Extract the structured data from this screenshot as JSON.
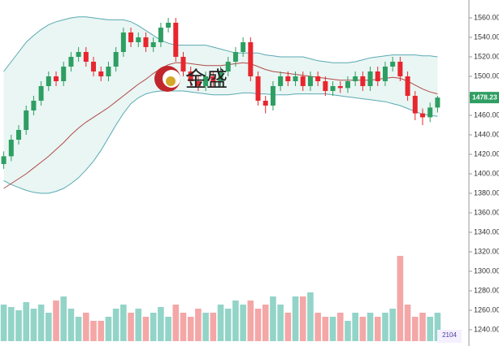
{
  "chart_data": {
    "type": "candlestick",
    "watermark": "金盛",
    "badge": "2104",
    "ylim": [
      1230,
      1570
    ],
    "yticks": [
      {
        "value": 1560,
        "label": "1560.00"
      },
      {
        "value": 1540,
        "label": "1540.00"
      },
      {
        "value": 1520,
        "label": "1520.00"
      },
      {
        "value": 1500,
        "label": "1500.00"
      },
      {
        "value": 1480,
        "label": "1480.00"
      },
      {
        "value": 1460,
        "label": "1460.00"
      },
      {
        "value": 1440,
        "label": "1440.00"
      },
      {
        "value": 1420,
        "label": "1420.00"
      },
      {
        "value": 1400,
        "label": "1400.00"
      },
      {
        "value": 1380,
        "label": "1380.00"
      },
      {
        "value": 1360,
        "label": "1360.00"
      },
      {
        "value": 1340,
        "label": "1340.00"
      },
      {
        "value": 1320,
        "label": "1320.00"
      },
      {
        "value": 1300,
        "label": "1300.00"
      },
      {
        "value": 1280,
        "label": "1280.00"
      },
      {
        "value": 1260,
        "label": "1260.00"
      },
      {
        "value": 1240,
        "label": "1240.00"
      }
    ],
    "up_color": "#2e9e62",
    "down_color": "#e8262e",
    "volume_up_color": "#93d4c8",
    "volume_down_color": "#f4a7a7",
    "band_color": "#5aa9b3",
    "band_fill": "#e9f6f3",
    "middle_color": "#b24a4a",
    "open": [
      1410,
      1418,
      1435,
      1445,
      1465,
      1475,
      1490,
      1500,
      1495,
      1510,
      1520,
      1525,
      1515,
      1505,
      1500,
      1510,
      1525,
      1545,
      1535,
      1540,
      1530,
      1535,
      1550,
      1555,
      1520,
      1505,
      1495,
      1490,
      1500,
      1495,
      1505,
      1515,
      1525,
      1535,
      1500,
      1475,
      1470,
      1490,
      1500,
      1495,
      1500,
      1490,
      1500,
      1495,
      1485,
      1490,
      1488,
      1495,
      1500,
      1490,
      1505,
      1495,
      1510,
      1515,
      1500,
      1480,
      1462,
      1458,
      1468
    ],
    "high": [
      1423,
      1440,
      1450,
      1470,
      1480,
      1495,
      1505,
      1505,
      1515,
      1525,
      1530,
      1530,
      1520,
      1510,
      1515,
      1530,
      1550,
      1550,
      1545,
      1545,
      1540,
      1555,
      1560,
      1560,
      1525,
      1510,
      1500,
      1505,
      1505,
      1510,
      1520,
      1530,
      1540,
      1540,
      1505,
      1480,
      1495,
      1505,
      1505,
      1505,
      1505,
      1505,
      1505,
      1500,
      1495,
      1495,
      1500,
      1505,
      1505,
      1510,
      1510,
      1515,
      1520,
      1520,
      1505,
      1485,
      1467,
      1473,
      1480
    ],
    "low": [
      1405,
      1413,
      1430,
      1440,
      1460,
      1470,
      1485,
      1490,
      1490,
      1505,
      1515,
      1510,
      1500,
      1495,
      1495,
      1505,
      1520,
      1530,
      1530,
      1525,
      1525,
      1530,
      1545,
      1515,
      1500,
      1490,
      1485,
      1485,
      1490,
      1490,
      1500,
      1510,
      1520,
      1495,
      1470,
      1462,
      1465,
      1485,
      1490,
      1490,
      1485,
      1485,
      1490,
      1480,
      1480,
      1483,
      1483,
      1490,
      1485,
      1485,
      1490,
      1490,
      1505,
      1495,
      1475,
      1455,
      1450,
      1453,
      1463
    ],
    "close": [
      1418,
      1435,
      1445,
      1465,
      1475,
      1490,
      1500,
      1495,
      1510,
      1520,
      1525,
      1515,
      1505,
      1500,
      1510,
      1525,
      1545,
      1535,
      1540,
      1530,
      1535,
      1550,
      1555,
      1520,
      1505,
      1495,
      1490,
      1500,
      1495,
      1505,
      1515,
      1525,
      1535,
      1500,
      1475,
      1470,
      1490,
      1500,
      1495,
      1500,
      1490,
      1500,
      1495,
      1485,
      1490,
      1488,
      1495,
      1500,
      1490,
      1505,
      1495,
      1510,
      1515,
      1500,
      1480,
      1462,
      1458,
      1468,
      1478.23
    ],
    "volume": [
      45,
      42,
      38,
      48,
      40,
      45,
      35,
      50,
      55,
      40,
      30,
      35,
      25,
      25,
      30,
      40,
      45,
      35,
      40,
      30,
      35,
      42,
      30,
      45,
      35,
      30,
      40,
      35,
      35,
      45,
      40,
      50,
      45,
      50,
      40,
      45,
      55,
      45,
      35,
      55,
      55,
      60,
      35,
      30,
      30,
      35,
      25,
      35,
      30,
      35,
      30,
      35,
      40,
      105,
      45,
      30,
      35,
      30,
      35
    ],
    "bollinger": {
      "upper": [
        1505,
        1515,
        1525,
        1535,
        1542,
        1548,
        1553,
        1556,
        1558,
        1560,
        1561,
        1561,
        1560,
        1559,
        1558,
        1558,
        1558,
        1556,
        1552,
        1547,
        1542,
        1537,
        1534,
        1532,
        1532,
        1532,
        1532,
        1532,
        1530,
        1528,
        1526,
        1524,
        1524,
        1524,
        1524,
        1522,
        1521,
        1520,
        1520,
        1520,
        1520,
        1518,
        1516,
        1515,
        1514,
        1514,
        1514,
        1515,
        1517,
        1519,
        1520,
        1521,
        1522,
        1522,
        1522,
        1522,
        1521,
        1521,
        1520
      ],
      "middle": [
        1385,
        1390,
        1395,
        1400,
        1406,
        1412,
        1418,
        1425,
        1432,
        1440,
        1447,
        1453,
        1458,
        1463,
        1468,
        1474,
        1480,
        1486,
        1492,
        1497,
        1503,
        1508,
        1512,
        1514,
        1514,
        1513,
        1512,
        1511,
        1511,
        1511,
        1512,
        1513,
        1514,
        1513,
        1510,
        1507,
        1505,
        1504,
        1503,
        1502,
        1501,
        1500,
        1499,
        1498,
        1497,
        1496,
        1496,
        1496,
        1496,
        1496,
        1497,
        1498,
        1499,
        1498,
        1495,
        1491,
        1487,
        1484,
        1482
      ],
      "lower": [
        1393,
        1389,
        1386,
        1383,
        1381,
        1380,
        1380,
        1382,
        1385,
        1390,
        1396,
        1404,
        1413,
        1424,
        1437,
        1450,
        1462,
        1472,
        1478,
        1482,
        1484,
        1485,
        1485,
        1485,
        1485,
        1484,
        1483,
        1482,
        1481,
        1481,
        1481,
        1482,
        1483,
        1483,
        1482,
        1482,
        1481,
        1481,
        1481,
        1482,
        1482,
        1482,
        1482,
        1482,
        1481,
        1480,
        1479,
        1478,
        1477,
        1476,
        1475,
        1474,
        1472,
        1470,
        1467,
        1464,
        1461,
        1460,
        1459
      ]
    }
  }
}
